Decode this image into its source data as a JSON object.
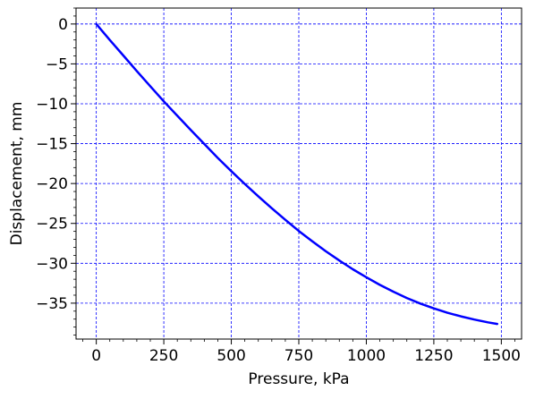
{
  "chart_data": {
    "type": "line",
    "title": "",
    "xlabel": "Pressure, kPa",
    "ylabel": "Displacement, mm",
    "xlim": [
      -75,
      1575
    ],
    "ylim": [
      -39.5,
      2.0
    ],
    "xticks": [
      0,
      250,
      500,
      750,
      1000,
      1250,
      1500
    ],
    "yticks": [
      0,
      -5,
      -10,
      -15,
      -20,
      -25,
      -30,
      -35
    ],
    "xtick_labels": [
      "0",
      "250",
      "500",
      "750",
      "1000",
      "1250",
      "1500"
    ],
    "ytick_labels": [
      "0",
      "−5",
      "−10",
      "−15",
      "−20",
      "−25",
      "−30",
      "−35"
    ],
    "grid": true,
    "grid_style": "dashed",
    "grid_color": "#0000ff",
    "minor_ticks": true,
    "legend": "none",
    "series": [
      {
        "color": "#0000ff",
        "x": [
          0,
          50,
          100,
          150,
          200,
          250,
          300,
          350,
          400,
          450,
          500,
          550,
          600,
          650,
          700,
          750,
          800,
          850,
          900,
          950,
          1000,
          1050,
          1100,
          1150,
          1200,
          1250,
          1300,
          1350,
          1400,
          1450,
          1485
        ],
        "y": [
          0,
          -2.0,
          -3.95,
          -5.9,
          -7.8,
          -9.7,
          -11.5,
          -13.3,
          -15.05,
          -16.8,
          -18.45,
          -20.05,
          -21.6,
          -23.1,
          -24.55,
          -25.95,
          -27.25,
          -28.5,
          -29.65,
          -30.75,
          -31.75,
          -32.7,
          -33.55,
          -34.35,
          -35.05,
          -35.65,
          -36.2,
          -36.65,
          -37.05,
          -37.4,
          -37.6
        ]
      }
    ]
  }
}
